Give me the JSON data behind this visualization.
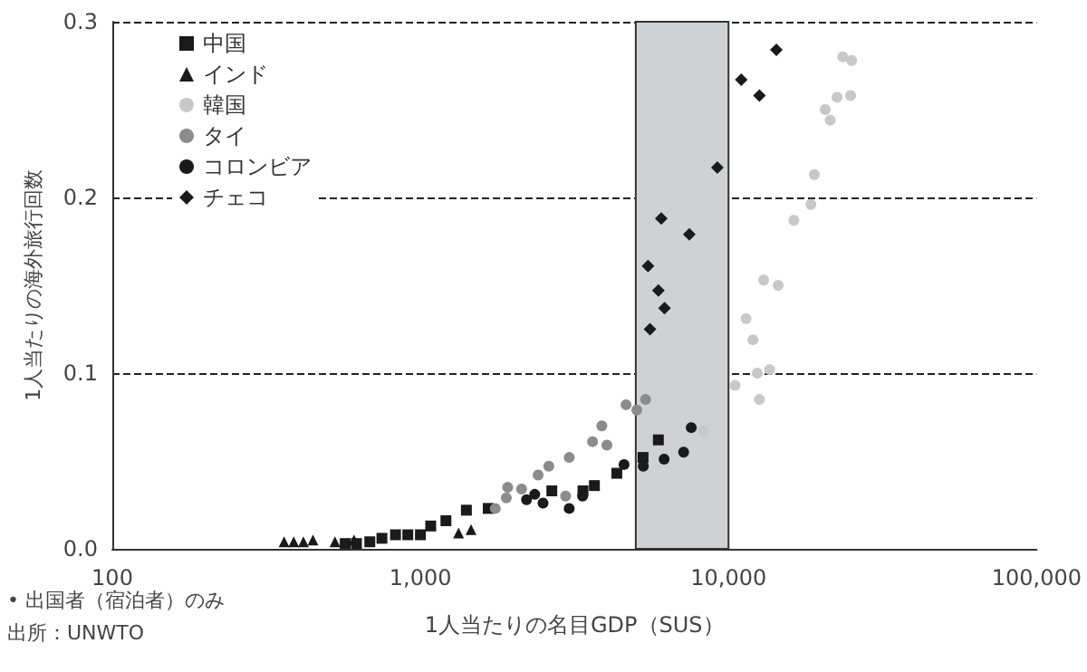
{
  "chart_data": {
    "type": "scatter",
    "xlabel": "1人当たりの名目GDP（SUS）",
    "ylabel": "1人当たりの海外旅行回数",
    "annotations": [
      "• 出国者（宿泊者）のみ",
      "出所：UNWTO"
    ],
    "log": "x",
    "xlim": [
      100,
      100000
    ],
    "xticks": [
      {
        "value": 100,
        "label": "100"
      },
      {
        "value": 1000,
        "label": "1,000"
      },
      {
        "value": 10000,
        "label": "10,000"
      },
      {
        "value": 100000,
        "label": "100,000"
      }
    ],
    "ylim": [
      0,
      0.3
    ],
    "yticks": [
      {
        "value": 0,
        "label": "0.0"
      },
      0.1,
      0.2,
      0.3
    ],
    "grid": "y",
    "line_style": "dashed",
    "legend": "top left",
    "bands": [
      {
        "axis": "x",
        "from": 5000,
        "to": 10000,
        "color": "#d0d1d3"
      }
    ],
    "series": [
      {
        "name": "中国",
        "color": "#1a1a1a",
        "marker": "square",
        "x": [
          5920,
          5280,
          4340,
          3670,
          3370,
          2670,
          1660,
          1410,
          1210,
          1080,
          1000,
          910,
          830,
          750,
          685,
          620,
          570
        ],
        "values": [
          0.062,
          0.052,
          0.043,
          0.036,
          0.033,
          0.033,
          0.023,
          0.022,
          0.016,
          0.013,
          0.008,
          0.008,
          0.008,
          0.006,
          0.004,
          0.003,
          0.003
        ]
      },
      {
        "name": "インド",
        "color": "#1a1a1a",
        "marker": "triangle",
        "x": [
          361,
          388,
          417,
          448,
          528,
          609,
          1330,
          1460
        ],
        "values": [
          0.004,
          0.004,
          0.004,
          0.005,
          0.004,
          0.005,
          0.009,
          0.011
        ]
      },
      {
        "name": "韓国",
        "color": "#c8c8c8",
        "marker": "circle",
        "x": [
          23500,
          25100,
          22500,
          24900,
          20600,
          21400,
          19000,
          18500,
          16300,
          13000,
          14500,
          11400,
          12000,
          12400,
          13600,
          10500,
          12600,
          8280
        ],
        "values": [
          0.28,
          0.278,
          0.257,
          0.258,
          0.25,
          0.244,
          0.213,
          0.196,
          0.187,
          0.153,
          0.15,
          0.131,
          0.119,
          0.1,
          0.102,
          0.093,
          0.085,
          0.067
        ]
      },
      {
        "name": "タイ",
        "color": "#8c8c8c",
        "marker": "circle",
        "x": [
          5380,
          5040,
          4650,
          3880,
          3620,
          4030,
          3040,
          2610,
          2410,
          2130,
          1920,
          1900,
          2960,
          1750
        ],
        "values": [
          0.085,
          0.079,
          0.082,
          0.07,
          0.061,
          0.059,
          0.052,
          0.047,
          0.042,
          0.034,
          0.035,
          0.029,
          0.03,
          0.023
        ]
      },
      {
        "name": "コロンビア",
        "color": "#1a1a1a",
        "marker": "circle",
        "x": [
          7570,
          7150,
          6180,
          5290,
          4580,
          3360,
          3040,
          2500,
          2350,
          2210
        ],
        "values": [
          0.069,
          0.055,
          0.051,
          0.047,
          0.048,
          0.03,
          0.023,
          0.026,
          0.031,
          0.028
        ]
      },
      {
        "name": "チェコ",
        "color": "#1a1a1a",
        "marker": "diamond",
        "x": [
          14300,
          11000,
          12600,
          9200,
          6050,
          7460,
          5480,
          5920,
          6200,
          5560
        ],
        "values": [
          0.284,
          0.267,
          0.258,
          0.217,
          0.188,
          0.179,
          0.161,
          0.147,
          0.137,
          0.125
        ]
      }
    ]
  }
}
